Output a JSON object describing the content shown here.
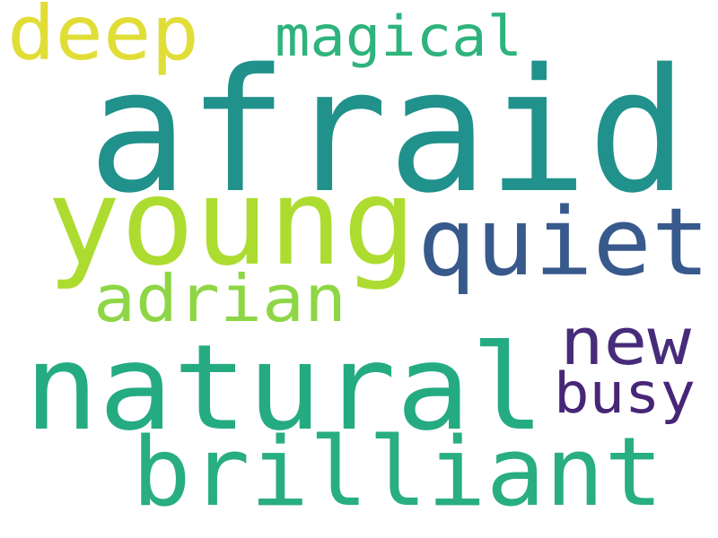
{
  "words": [
    {
      "text": "afraid",
      "color": "#21918c"
    },
    {
      "text": "young",
      "color": "#addc30"
    },
    {
      "text": "natural",
      "color": "#25ab82"
    },
    {
      "text": "quiet",
      "color": "#38598c"
    },
    {
      "text": "brilliant",
      "color": "#28ae80"
    },
    {
      "text": "deep",
      "color": "#e1dd37"
    },
    {
      "text": "adrian",
      "color": "#8ed645"
    },
    {
      "text": "magical",
      "color": "#2eb37c"
    },
    {
      "text": "new",
      "color": "#472c7a"
    },
    {
      "text": "busy",
      "color": "#482677"
    }
  ]
}
